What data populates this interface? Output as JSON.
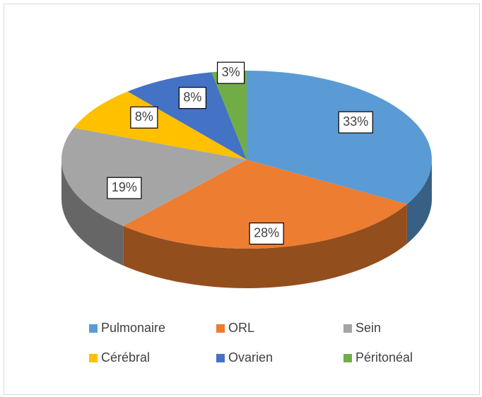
{
  "chart_data": {
    "type": "pie3d",
    "categories": [
      "Pulmonaire",
      "ORL",
      "Sein",
      "Cérébral",
      "Ovarien",
      "Péritonéal"
    ],
    "values": [
      33,
      28,
      19,
      8,
      8,
      3
    ],
    "value_labels": [
      "33%",
      "28%",
      "19%",
      "8%",
      "8%",
      "3%"
    ],
    "colors": [
      "#5b9bd5",
      "#ed7d31",
      "#a5a5a5",
      "#ffc000",
      "#4472c4",
      "#70ad47"
    ],
    "legend": "bottom"
  }
}
